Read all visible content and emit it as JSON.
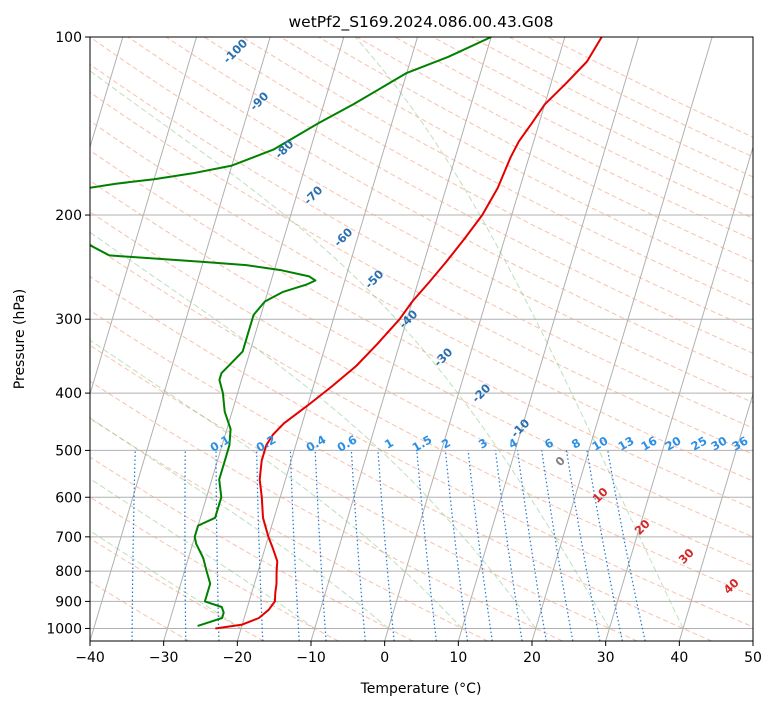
{
  "chart_data": {
    "type": "line",
    "title": "wetPf2_S169.2024.086.00.43.G08",
    "xlabel": "Temperature (°C)",
    "ylabel": "Pressure (hPa)",
    "xlim": [
      -40,
      50
    ],
    "ylim": [
      1050,
      100
    ],
    "y_scale": "log",
    "grid": true,
    "x_ticks": [
      -40,
      -30,
      -20,
      -10,
      0,
      10,
      20,
      30,
      40,
      50
    ],
    "y_ticks": [
      100,
      200,
      300,
      400,
      500,
      600,
      700,
      800,
      900,
      1000
    ],
    "x_tick_labels": [
      "−40",
      "−30",
      "−20",
      "−10",
      "0",
      "10",
      "20",
      "30",
      "40",
      "50"
    ],
    "y_tick_labels": [
      "100",
      "200",
      "300",
      "400",
      "500",
      "600",
      "700",
      "800",
      "900",
      "1000"
    ],
    "skew_dry_adiabat_labels": [
      {
        "text": "-100",
        "p": 107,
        "t": -25
      },
      {
        "text": "-90",
        "p": 131,
        "t": -19
      },
      {
        "text": "-80",
        "p": 160,
        "t": -13.5
      },
      {
        "text": "-70",
        "p": 196,
        "t": -10
      },
      {
        "text": "-60",
        "p": 239,
        "t": -5.5
      },
      {
        "text": "-50",
        "p": 287,
        "t": -1.5
      },
      {
        "text": "-40",
        "p": 351,
        "t": 2.5
      },
      {
        "text": "-30",
        "p": 424,
        "t": 7
      },
      {
        "text": "-20",
        "p": 509,
        "t": 12
      },
      {
        "text": "-10",
        "p": 608,
        "t": 17
      }
    ],
    "mixing_ratio_labels": [
      "0.1",
      "0.2",
      "0.4",
      "0.6",
      "1",
      "1.5",
      "2",
      "3",
      "4",
      "6",
      "8",
      "10",
      "13",
      "16",
      "20",
      "25",
      "30",
      "36"
    ],
    "moist_adiabat_labels": [
      "0",
      "10",
      "20",
      "30",
      "40"
    ],
    "series": [
      {
        "color": "#e50000",
        "points": [
          [
            1000,
            -23.5
          ],
          [
            985,
            -20
          ],
          [
            960,
            -18
          ],
          [
            930,
            -17
          ],
          [
            900,
            -16.5
          ],
          [
            870,
            -16.8
          ],
          [
            840,
            -17
          ],
          [
            800,
            -17.5
          ],
          [
            770,
            -17.8
          ],
          [
            730,
            -19
          ],
          [
            700,
            -20
          ],
          [
            650,
            -21.5
          ],
          [
            600,
            -22.5
          ],
          [
            560,
            -23.5
          ],
          [
            520,
            -24
          ],
          [
            490,
            -24
          ],
          [
            470,
            -23.5
          ],
          [
            450,
            -22.5
          ],
          [
            420,
            -20
          ],
          [
            390,
            -17.5
          ],
          [
            360,
            -15
          ],
          [
            330,
            -13
          ],
          [
            300,
            -11
          ],
          [
            280,
            -10
          ],
          [
            260,
            -8.5
          ],
          [
            240,
            -7
          ],
          [
            220,
            -5.5
          ],
          [
            200,
            -4
          ],
          [
            180,
            -3
          ],
          [
            160,
            -2.5
          ],
          [
            150,
            -2
          ],
          [
            140,
            -1
          ],
          [
            130,
            0
          ],
          [
            120,
            2
          ],
          [
            110,
            4
          ],
          [
            100,
            5
          ]
        ]
      },
      {
        "color": "#008000",
        "points": [
          [
            990,
            -26
          ],
          [
            980,
            -25
          ],
          [
            960,
            -23
          ],
          [
            940,
            -23
          ],
          [
            920,
            -23.5
          ],
          [
            900,
            -26
          ],
          [
            870,
            -26
          ],
          [
            840,
            -26
          ],
          [
            800,
            -27
          ],
          [
            760,
            -28
          ],
          [
            720,
            -29.5
          ],
          [
            700,
            -30
          ],
          [
            670,
            -30
          ],
          [
            650,
            -28
          ],
          [
            630,
            -28
          ],
          [
            600,
            -28
          ],
          [
            560,
            -29
          ],
          [
            520,
            -29
          ],
          [
            490,
            -29
          ],
          [
            460,
            -29.5
          ],
          [
            430,
            -31
          ],
          [
            400,
            -32
          ],
          [
            380,
            -33
          ],
          [
            370,
            -33
          ],
          [
            355,
            -32
          ],
          [
            340,
            -31
          ],
          [
            320,
            -31
          ],
          [
            310,
            -31
          ],
          [
            295,
            -31
          ],
          [
            280,
            -30
          ],
          [
            270,
            -28
          ],
          [
            262,
            -25
          ],
          [
            258,
            -24
          ],
          [
            254,
            -25
          ],
          [
            248,
            -29
          ],
          [
            243,
            -34
          ],
          [
            240,
            -40
          ],
          [
            234,
            -53
          ],
          [
            225,
            -56
          ],
          [
            200,
            -60
          ],
          [
            183,
            -62
          ],
          [
            177,
            -55
          ],
          [
            174,
            -50
          ],
          [
            170,
            -45
          ],
          [
            165,
            -40
          ],
          [
            155,
            -35
          ],
          [
            140,
            -30
          ],
          [
            130,
            -26
          ],
          [
            115,
            -20
          ],
          [
            108,
            -15
          ],
          [
            100,
            -10
          ]
        ]
      }
    ]
  }
}
